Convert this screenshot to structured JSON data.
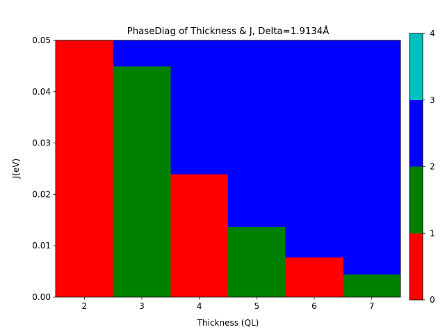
{
  "chart_data": {
    "type": "heatmap",
    "title": "PhaseDiag of Thickness & J, Delta=1.9134Å",
    "xlabel": "Thickness (QL)",
    "ylabel": "J(eV)",
    "x": [
      2,
      3,
      4,
      5,
      6,
      7
    ],
    "xlim": [
      1.5,
      7.5
    ],
    "ylim": [
      0,
      0.05
    ],
    "xticks": [
      "2",
      "3",
      "4",
      "5",
      "6",
      "7"
    ],
    "yticks": [
      "0.00",
      "0.01",
      "0.02",
      "0.03",
      "0.04",
      "0.05"
    ],
    "boundary": [
      {
        "x": 2,
        "y": 0.05,
        "lower_phase": 0,
        "upper_phase": 2
      },
      {
        "x": 3,
        "y": 0.0449,
        "lower_phase": 1,
        "upper_phase": 2
      },
      {
        "x": 4,
        "y": 0.0239,
        "lower_phase": 0,
        "upper_phase": 2
      },
      {
        "x": 5,
        "y": 0.0137,
        "lower_phase": 1,
        "upper_phase": 2
      },
      {
        "x": 6,
        "y": 0.0077,
        "lower_phase": 0,
        "upper_phase": 2
      },
      {
        "x": 7,
        "y": 0.0044,
        "lower_phase": 1,
        "upper_phase": 2
      }
    ],
    "colorbar": {
      "range": [
        0,
        4
      ],
      "ticks": [
        "0",
        "1",
        "2",
        "3",
        "4"
      ],
      "colors": [
        "#ff0000",
        "#008000",
        "#0000ff",
        "#00bfbf"
      ]
    },
    "grid": false
  }
}
